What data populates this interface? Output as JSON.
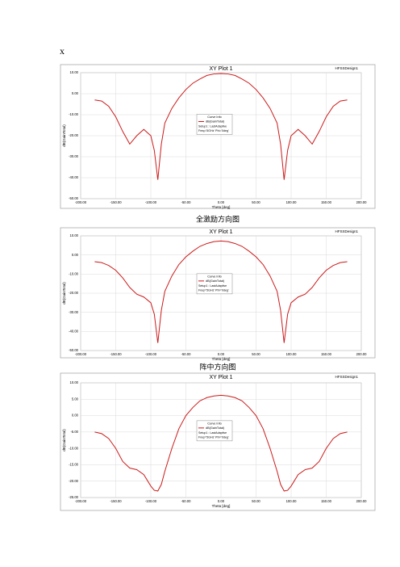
{
  "heading": "x",
  "captions": [
    "全激励方向图",
    "阵中方向图"
  ],
  "chart_data": [
    {
      "type": "line",
      "title": "XY Plot 1",
      "design": "HFSSDesign1",
      "x_label": "Theta [deg]",
      "y_label": "dB(GainTotal)",
      "legend_title": "Curve Info",
      "legend_lines": [
        "Setup1 : LastAdaptive",
        "Freq='5GHz' Phi='0deg'"
      ],
      "x": [
        -180,
        -170,
        -160,
        -150,
        -140,
        -130,
        -120,
        -110,
        -100,
        -95,
        -90,
        -85,
        -80,
        -70,
        -60,
        -50,
        -40,
        -30,
        -20,
        -10,
        0,
        10,
        20,
        30,
        40,
        50,
        60,
        70,
        80,
        85,
        90,
        95,
        100,
        110,
        120,
        130,
        140,
        150,
        160,
        170,
        180
      ],
      "series": [
        {
          "name": "dB(GainTotal)",
          "color": "#cc1a1a",
          "values": [
            -3,
            -3.5,
            -6,
            -11,
            -18,
            -24,
            -20,
            -17,
            -20,
            -27,
            -41,
            -24,
            -14,
            -7,
            -2,
            2,
            5,
            7,
            8.7,
            9.4,
            9.6,
            9.4,
            8.7,
            7,
            5,
            2,
            -2,
            -7,
            -14,
            -24,
            -41,
            -27,
            -20,
            -17,
            -20,
            -24,
            -18,
            -11,
            -6,
            -3.5,
            -3
          ]
        }
      ],
      "xlim": [
        -200,
        200
      ],
      "xticks": [
        {
          "value": -200,
          "label": "-200.00"
        },
        {
          "value": -150,
          "label": "-150.00"
        },
        {
          "value": -100,
          "label": "-100.00"
        },
        {
          "value": -50,
          "label": "-50.00"
        },
        {
          "value": 0,
          "label": "0.00"
        },
        {
          "value": 50,
          "label": "50.00"
        },
        {
          "value": 100,
          "label": "100.00"
        },
        {
          "value": 150,
          "label": "150.00"
        },
        {
          "value": 200,
          "label": "200.00"
        }
      ],
      "ylim": [
        -50,
        10
      ],
      "yticks": [
        {
          "value": 10,
          "label": "10.00"
        },
        {
          "value": 0,
          "label": "0.00"
        },
        {
          "value": -10,
          "label": "-10.00"
        },
        {
          "value": -20,
          "label": "-20.00"
        },
        {
          "value": -30,
          "label": "-30.00"
        },
        {
          "value": -40,
          "label": "-40.00"
        },
        {
          "value": -50,
          "label": "-50.00"
        }
      ],
      "grid": true
    },
    {
      "type": "line",
      "title": "XY Plot 1",
      "design": "HFSSDesign1",
      "x_label": "Theta [deg]",
      "y_label": "dB(GainTotal)",
      "legend_title": "Curve Info",
      "legend_lines": [
        "Setup1 : LastAdaptive",
        "Freq='5GHz' Phi='0deg'"
      ],
      "x": [
        -180,
        -170,
        -160,
        -150,
        -140,
        -130,
        -120,
        -110,
        -100,
        -95,
        -90,
        -85,
        -80,
        -70,
        -60,
        -50,
        -40,
        -30,
        -20,
        -10,
        0,
        10,
        20,
        30,
        40,
        50,
        60,
        70,
        80,
        85,
        90,
        95,
        100,
        110,
        120,
        130,
        140,
        150,
        160,
        170,
        180
      ],
      "series": [
        {
          "name": "dB(GainTotal)",
          "color": "#cc1a1a",
          "values": [
            -3.5,
            -4,
            -5.5,
            -8,
            -12,
            -17,
            -20.5,
            -22,
            -25,
            -31,
            -46,
            -29,
            -19,
            -11,
            -5,
            -1,
            2,
            4.5,
            6,
            7,
            7.3,
            7,
            6,
            4.5,
            2,
            -1,
            -5,
            -11,
            -19,
            -29,
            -46,
            -31,
            -25,
            -22,
            -20.5,
            -17,
            -12,
            -8,
            -5.5,
            -4,
            -3.5
          ]
        }
      ],
      "xlim": [
        -200,
        200
      ],
      "xticks": [
        {
          "value": -200,
          "label": "-200.00"
        },
        {
          "value": -150,
          "label": "-150.00"
        },
        {
          "value": -100,
          "label": "-100.00"
        },
        {
          "value": -50,
          "label": "-50.00"
        },
        {
          "value": 0,
          "label": "0.00"
        },
        {
          "value": 50,
          "label": "50.00"
        },
        {
          "value": 100,
          "label": "100.00"
        },
        {
          "value": 150,
          "label": "150.00"
        },
        {
          "value": 200,
          "label": "200.00"
        }
      ],
      "ylim": [
        -50,
        10
      ],
      "yticks": [
        {
          "value": 10,
          "label": "10.00"
        },
        {
          "value": 0,
          "label": "0.00"
        },
        {
          "value": -10,
          "label": "-10.00"
        },
        {
          "value": -20,
          "label": "-20.00"
        },
        {
          "value": -30,
          "label": "-30.00"
        },
        {
          "value": -40,
          "label": "-40.00"
        },
        {
          "value": -50,
          "label": "-50.00"
        }
      ],
      "grid": true
    },
    {
      "type": "line",
      "title": "XY Plot 1",
      "design": "HFSSDesign1",
      "x_label": "Theta [deg]",
      "y_label": "dB(GainTotal)",
      "legend_title": "Curve Info",
      "legend_lines": [
        "Setup1 : LastAdaptive",
        "Freq='5GHz' Phi='0deg'"
      ],
      "x": [
        -180,
        -170,
        -160,
        -150,
        -140,
        -130,
        -120,
        -110,
        -100,
        -95,
        -90,
        -85,
        -80,
        -70,
        -60,
        -50,
        -40,
        -30,
        -20,
        -10,
        0,
        10,
        20,
        30,
        40,
        50,
        60,
        70,
        80,
        85,
        90,
        95,
        100,
        110,
        120,
        130,
        140,
        150,
        160,
        170,
        180
      ],
      "series": [
        {
          "name": "dB(GainTotal)",
          "color": "#cc1a1a",
          "values": [
            -5,
            -5.5,
            -7,
            -10,
            -14,
            -16,
            -16.5,
            -18,
            -21.5,
            -22.8,
            -23,
            -21,
            -17,
            -10,
            -4,
            0,
            2.5,
            4.5,
            5.5,
            6,
            6.2,
            6,
            5.5,
            4.5,
            2.5,
            0,
            -4,
            -10,
            -17,
            -21,
            -23,
            -22.8,
            -21.5,
            -18,
            -16.5,
            -16,
            -14,
            -10,
            -7,
            -5.5,
            -5
          ]
        }
      ],
      "xlim": [
        -200,
        200
      ],
      "xticks": [
        {
          "value": -200,
          "label": "-200.00"
        },
        {
          "value": -150,
          "label": "-150.00"
        },
        {
          "value": -100,
          "label": "-100.00"
        },
        {
          "value": -50,
          "label": "-50.00"
        },
        {
          "value": 0,
          "label": "0.00"
        },
        {
          "value": 50,
          "label": "50.00"
        },
        {
          "value": 100,
          "label": "100.00"
        },
        {
          "value": 150,
          "label": "150.00"
        },
        {
          "value": 200,
          "label": "200.00"
        }
      ],
      "ylim": [
        -25,
        10
      ],
      "yticks": [
        {
          "value": 10,
          "label": "10.00"
        },
        {
          "value": 5,
          "label": "5.00"
        },
        {
          "value": 0,
          "label": "0.00"
        },
        {
          "value": -5,
          "label": "-5.00"
        },
        {
          "value": -10,
          "label": "-10.00"
        },
        {
          "value": -15,
          "label": "-15.00"
        },
        {
          "value": -20,
          "label": "-20.00"
        },
        {
          "value": -25,
          "label": "-25.00"
        }
      ],
      "grid": true
    }
  ]
}
